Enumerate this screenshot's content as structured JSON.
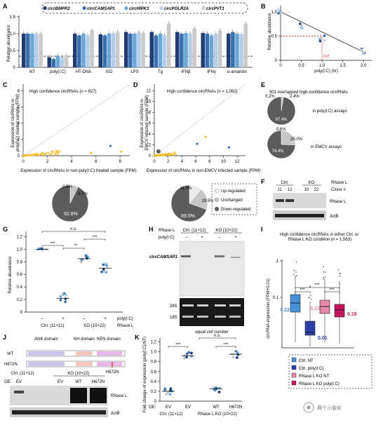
{
  "colors": {
    "dark_navy": "#1f3d73",
    "mid_blue": "#3a6fae",
    "light_blue": "#6aa6d6",
    "pale_blue": "#b5cde6",
    "grey": "#c9c9c9",
    "scatter_yellow": "#f2c12e",
    "pie_dark": "#5c5c5c",
    "pie_light": "#c6c6c6",
    "red": "#d62828",
    "pink": "#e58aa6",
    "crimson": "#c2185b",
    "box_blue": "#4a90d9",
    "box_navy": "#2c3ea8"
  },
  "panel_letters": [
    "A",
    "B",
    "C",
    "D",
    "E",
    "F",
    "G",
    "H",
    "I",
    "J",
    "K"
  ],
  "A": {
    "legend": [
      "circBMPR2",
      "circCAMSAP1",
      "circHIPK3",
      "circPOLR2A",
      "circPVT1"
    ],
    "ylabel": "Relative abundance",
    "yticks": [
      "0",
      "0.5",
      "1.0",
      "1.5"
    ],
    "groups": [
      "NT",
      "poly(I:C)",
      "HT-DNA",
      "ISD",
      "LPS",
      "Tg",
      "IFNβ",
      "IFNγ",
      "α-amanitin"
    ],
    "chart_data": {
      "type": "bar",
      "categories": [
        "NT",
        "poly(I:C)",
        "HT-DNA",
        "ISD",
        "LPS",
        "Tg",
        "IFNβ",
        "IFNγ",
        "α-amanitin"
      ],
      "ylim": [
        0,
        1.5
      ],
      "threshold": 0.33,
      "series": [
        {
          "name": "circBMPR2",
          "values": [
            1.0,
            0.3,
            1.0,
            0.98,
            1.05,
            1.05,
            1.05,
            1.02,
            1.0
          ]
        },
        {
          "name": "circCAMSAP1",
          "values": [
            1.0,
            0.25,
            0.95,
            0.95,
            1.0,
            0.95,
            1.0,
            1.0,
            1.05
          ]
        },
        {
          "name": "circHIPK3",
          "values": [
            1.0,
            0.35,
            1.0,
            1.0,
            1.0,
            1.0,
            1.02,
            0.95,
            1.0
          ]
        },
        {
          "name": "circPOLR2A",
          "values": [
            1.0,
            0.3,
            0.95,
            1.0,
            1.05,
            0.95,
            1.0,
            1.0,
            0.98
          ]
        },
        {
          "name": "circPVT1",
          "values": [
            1.0,
            0.35,
            1.1,
            1.05,
            1.02,
            1.3,
            1.15,
            1.1,
            1.3
          ]
        }
      ]
    }
  },
  "B": {
    "ylabel": "Relative abundance",
    "xlabel": "poly(I:C) (hr)",
    "xticks": [
      "0",
      "0.5",
      "1.0",
      "1.5",
      "2.0"
    ],
    "yticks": [
      "0",
      "0.5",
      "1.0"
    ],
    "half_label": "t1/2",
    "chart_data": {
      "type": "scatter",
      "x": [
        0,
        0.5,
        1.0,
        2.0
      ],
      "y": [
        1.0,
        0.72,
        0.45,
        0.18
      ],
      "xlim": [
        0,
        2.2
      ],
      "ylim": [
        0,
        1.1
      ],
      "half_life_x": 1.0,
      "half_life_y": 0.5
    }
  },
  "C": {
    "annotation": "High confidence circRNAs (n = 827)",
    "ylabel": "Expression of circRNAs in poly(I:C) treated sample (FPM)",
    "xlabel": "Expression of circRNAs in non-poly(I:C) treated sample (FPM)",
    "xticks": [
      "0",
      "2",
      "4",
      "6",
      "8"
    ],
    "yticks": [
      "0",
      "2",
      "4",
      "6",
      "8"
    ],
    "pie_labels": [
      "0.5%",
      "6.7%",
      "92.8%"
    ],
    "chart_data": {
      "type": "pie",
      "slices": [
        {
          "name": "Up-regulated",
          "value": 0.5
        },
        {
          "name": "Unchanged",
          "value": 6.7
        },
        {
          "name": "Down-regulated",
          "value": 92.8
        }
      ]
    }
  },
  "D": {
    "annotation": "High confidence circRNAs (n = 1,062)",
    "ylabel": "Expression of circRNAs in EMCV infected sample (FPM)",
    "xlabel": "Expression of circRNAs in non-EMCV infected sample (FPM)",
    "xticks": [
      "0",
      "2",
      "4",
      "6",
      "8",
      "10",
      "12"
    ],
    "yticks": [
      "0",
      "2",
      "4",
      "6",
      "8",
      "10",
      "12"
    ],
    "pie_labels": [
      "11.0%",
      "19.5%",
      "69.5%"
    ],
    "legend": [
      "Up-regulated",
      "Unchanged",
      "Down-regulated"
    ],
    "chart_data": {
      "type": "pie",
      "slices": [
        {
          "name": "Up-regulated",
          "value": 11.0
        },
        {
          "name": "Unchanged",
          "value": 19.5
        },
        {
          "name": "Down-regulated",
          "value": 69.5
        }
      ]
    }
  },
  "E": {
    "title": "501 overlapped high-confidence circRNAs",
    "label_top": "in poly(I:C) assays",
    "label_bottom": "in EMCV assays",
    "pie1_labels": [
      "0.2%",
      "2.4%",
      "97.4%"
    ],
    "pie2_labels": [
      "0.6%",
      "25.0%",
      "74.4%"
    ],
    "chart_data": [
      {
        "type": "pie",
        "title": "in poly(I:C) assays",
        "slices": [
          {
            "name": "Up-regulated",
            "value": 0.2
          },
          {
            "name": "Unchanged",
            "value": 2.4
          },
          {
            "name": "Down-regulated",
            "value": 97.4
          }
        ]
      },
      {
        "type": "pie",
        "title": "in EMCV assays",
        "slices": [
          {
            "name": "Up-regulated",
            "value": 0.6
          },
          {
            "name": "Unchanged",
            "value": 25.0
          },
          {
            "name": "Down-regulated",
            "value": 74.4
          }
        ]
      }
    ]
  },
  "F": {
    "header_ctrl": "Ctrl.",
    "header_ko": "KO",
    "header_rnase": "RNase L",
    "clones": [
      "11",
      "12",
      "10",
      "22"
    ],
    "clone_label": "Clone #",
    "band1": "RNase L",
    "band2": "ActB"
  },
  "G": {
    "ylabel": "Relative abundance",
    "yticks": [
      "0",
      "0.2",
      "0.4",
      "0.6",
      "0.8",
      "1.0",
      "1.2"
    ],
    "sig": [
      "n.s.",
      "***",
      "***",
      "**"
    ],
    "polyic_label": "poly(I:C)",
    "rnase_label": "RNase L",
    "signs": [
      "–",
      "+",
      "–",
      "+"
    ],
    "group_ctrl": "Ctrl. (11+12)",
    "group_ko": "KO (10+22)",
    "chart_data": {
      "type": "scatter",
      "categories": [
        "Ctrl. –",
        "Ctrl. +",
        "KO –",
        "KO +"
      ],
      "values": [
        1.0,
        0.22,
        0.85,
        0.7
      ],
      "ylim": [
        0,
        1.2
      ]
    }
  },
  "H": {
    "top_label_rnase": "RNase L",
    "top_ctrl": "Ctrl. (11+12)",
    "top_ko": "KO (10+22)",
    "polyic": "poly(I:C)",
    "signs": [
      "–",
      "+",
      "–",
      "+"
    ],
    "gene": "circCAMSAP1",
    "r28": "28S",
    "r18": "18S",
    "footer": "equal cell number"
  },
  "I": {
    "title": "High confidence circRNAs in either Ctrl. or RNase L KO condition (n = 1,563)",
    "ylabel": "circRNA expression (FPM+0.01)",
    "yticks": [
      "0.1",
      "1"
    ],
    "sig": [
      "***",
      "***",
      "***",
      "***"
    ],
    "medians": [
      "0.22",
      "0.01",
      "0.23",
      "0.16"
    ],
    "legend": [
      "Ctrl. NT",
      "Ctrl. poly(I:C)",
      "RNase L KO NT",
      "RNase L KO poly(I:C)"
    ],
    "chart_data": {
      "type": "box",
      "categories": [
        "Ctrl. NT",
        "Ctrl. poly(I:C)",
        "RNase L KO NT",
        "RNase L KO poly(I:C)"
      ],
      "medians": [
        0.22,
        0.01,
        0.23,
        0.16
      ]
    }
  },
  "J": {
    "domains": [
      "ANK domain",
      "KH domain",
      "KEN domain"
    ],
    "wt": "WT",
    "mut": "H672N",
    "mut_label": "H672N",
    "group_ctrl": "Ctrl. (11+12)",
    "group_ko": "KO (10+22)",
    "oe": "OE:",
    "lanes": [
      "EV",
      "EV",
      "WT",
      "H672N"
    ],
    "band1": "RNase L",
    "band2": "ActB"
  },
  "K": {
    "ylabel": "Fold change of expression (poly(I:C)/NT)",
    "yticks": [
      "0",
      "0.2",
      "0.4",
      "0.6",
      "0.8",
      "1.0",
      "1.2"
    ],
    "sig": [
      "n.s.",
      "***",
      "***"
    ],
    "oe": "OE:",
    "lanes": [
      "EV",
      "EV",
      "WT",
      "H672N"
    ],
    "group_ctrl": "Ctrl. (11+12)",
    "group_ko": "RNase L KO (10+22)",
    "chart_data": {
      "type": "scatter",
      "categories": [
        "EV (Ctrl.)",
        "EV (KO)",
        "WT (KO)",
        "H672N (KO)"
      ],
      "values": [
        0.2,
        0.92,
        0.25,
        0.95
      ],
      "ylim": [
        0,
        1.2
      ]
    }
  },
  "watermark": "两个小象轮"
}
